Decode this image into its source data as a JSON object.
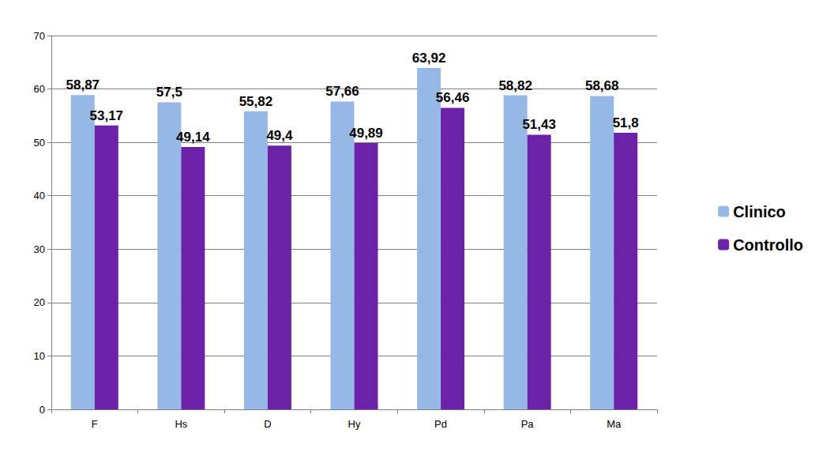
{
  "chart_data": {
    "type": "bar",
    "categories": [
      "F",
      "Hs",
      "D",
      "Hy",
      "Pd",
      "Pa",
      "Ma"
    ],
    "series": [
      {
        "name": "Clinico",
        "color": "#95b8e6",
        "values": [
          58.87,
          57.5,
          55.82,
          57.66,
          63.92,
          58.82,
          58.68
        ],
        "value_labels": [
          "58,87",
          "57,5",
          "55,82",
          "57,66",
          "63,92",
          "58,82",
          "58,68"
        ]
      },
      {
        "name": "Controllo",
        "color": "#6b22a8",
        "values": [
          53.17,
          49.14,
          49.4,
          49.89,
          56.46,
          51.43,
          51.8
        ],
        "value_labels": [
          "53,17",
          "49,14",
          "49,4",
          "49,89",
          "56,46",
          "51,43",
          "51,8"
        ]
      }
    ],
    "ylim": [
      0,
      70
    ],
    "yticks": [
      0,
      10,
      20,
      30,
      40,
      50,
      60,
      70
    ],
    "grid": true,
    "data_labels": true,
    "legend": "right"
  }
}
